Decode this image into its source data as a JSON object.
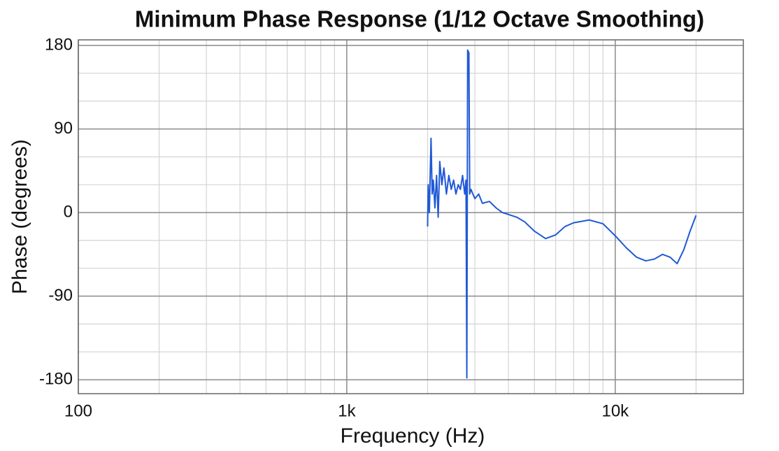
{
  "chart_data": {
    "type": "line",
    "title": "Minimum Phase Response (1/12 Octave Smoothing)",
    "x_label": "Frequency (Hz)",
    "y_label": "Phase (degrees)",
    "xscale": "log",
    "xlim": [
      100,
      30000
    ],
    "ylim": [
      -195,
      186
    ],
    "xticks": [
      100,
      {
        "value": 1000,
        "label": "1k"
      },
      {
        "value": 10000,
        "label": "10k"
      }
    ],
    "xminorticks": [
      200,
      300,
      400,
      500,
      600,
      700,
      800,
      900,
      2000,
      3000,
      4000,
      5000,
      6000,
      7000,
      8000,
      9000,
      20000
    ],
    "yticks": [
      180,
      90,
      0,
      -90,
      -180
    ],
    "yminorticks": [
      150,
      120,
      60,
      30,
      -30,
      -60,
      -120,
      -150
    ],
    "grid": true,
    "x": [
      2000,
      2010,
      2030,
      2060,
      2080,
      2100,
      2130,
      2160,
      2190,
      2220,
      2260,
      2300,
      2350,
      2400,
      2450,
      2500,
      2550,
      2600,
      2650,
      2700,
      2750,
      2780,
      2800,
      2820,
      2850,
      2870,
      2900,
      3000,
      3100,
      3200,
      3400,
      3600,
      3800,
      4000,
      4300,
      4600,
      5000,
      5500,
      6000,
      6500,
      7000,
      8000,
      9000,
      10000,
      11000,
      12000,
      13000,
      14000,
      15000,
      16000,
      17000,
      18000,
      19000,
      20000
    ],
    "series": [
      {
        "color": "#2059d6",
        "values": [
          -15,
          30,
          0,
          80,
          20,
          35,
          5,
          40,
          -5,
          55,
          30,
          48,
          20,
          40,
          25,
          35,
          20,
          30,
          25,
          40,
          20,
          35,
          -178,
          175,
          172,
          20,
          25,
          15,
          20,
          10,
          12,
          5,
          0,
          -2,
          -5,
          -10,
          -20,
          -28,
          -24,
          -15,
          -11,
          -8,
          -12,
          -25,
          -38,
          -48,
          -52,
          -50,
          -45,
          -48,
          -55,
          -40,
          -20,
          -3
        ]
      }
    ]
  }
}
